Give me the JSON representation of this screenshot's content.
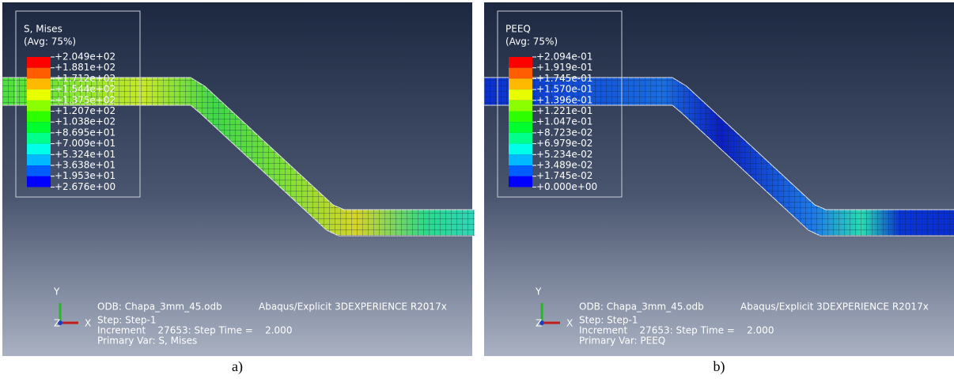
{
  "panels": [
    {
      "legend": {
        "title": "S, Mises",
        "subtitle": "(Avg: 75%)",
        "values": [
          "+2.049e+02",
          "+1.881e+02",
          "+1.712e+02",
          "+1.544e+02",
          "+1.375e+02",
          "+1.207e+02",
          "+1.038e+02",
          "+8.695e+01",
          "+7.009e+01",
          "+5.324e+01",
          "+3.638e+01",
          "+1.953e+01",
          "+2.676e+00"
        ]
      },
      "axes": {
        "y": "Y",
        "x": "X",
        "z": "Z"
      },
      "odb": "ODB: Chapa_3mm_45.odb",
      "software": "Abaqus/Explicit 3DEXPERIENCE R2017x",
      "step": "Step: Step-1",
      "increment": "Increment    27653: Step Time =    2.000",
      "primary_var": "Primary Var: S, Mises",
      "caption": "a)"
    },
    {
      "legend": {
        "title": "PEEQ",
        "subtitle": "(Avg: 75%)",
        "values": [
          "+2.094e-01",
          "+1.919e-01",
          "+1.745e-01",
          "+1.570e-01",
          "+1.396e-01",
          "+1.221e-01",
          "+1.047e-01",
          "+8.723e-02",
          "+6.979e-02",
          "+5.234e-02",
          "+3.489e-02",
          "+1.745e-02",
          "+0.000e+00"
        ]
      },
      "axes": {
        "y": "Y",
        "x": "X",
        "z": "Z"
      },
      "odb": "ODB: Chapa_3mm_45.odb",
      "software": "Abaqus/Explicit 3DEXPERIENCE R2017x",
      "step": "Step: Step-1",
      "increment": "Increment    27653: Step Time =    2.000",
      "primary_var": "Primary Var: PEEQ",
      "caption": "b)"
    }
  ]
}
